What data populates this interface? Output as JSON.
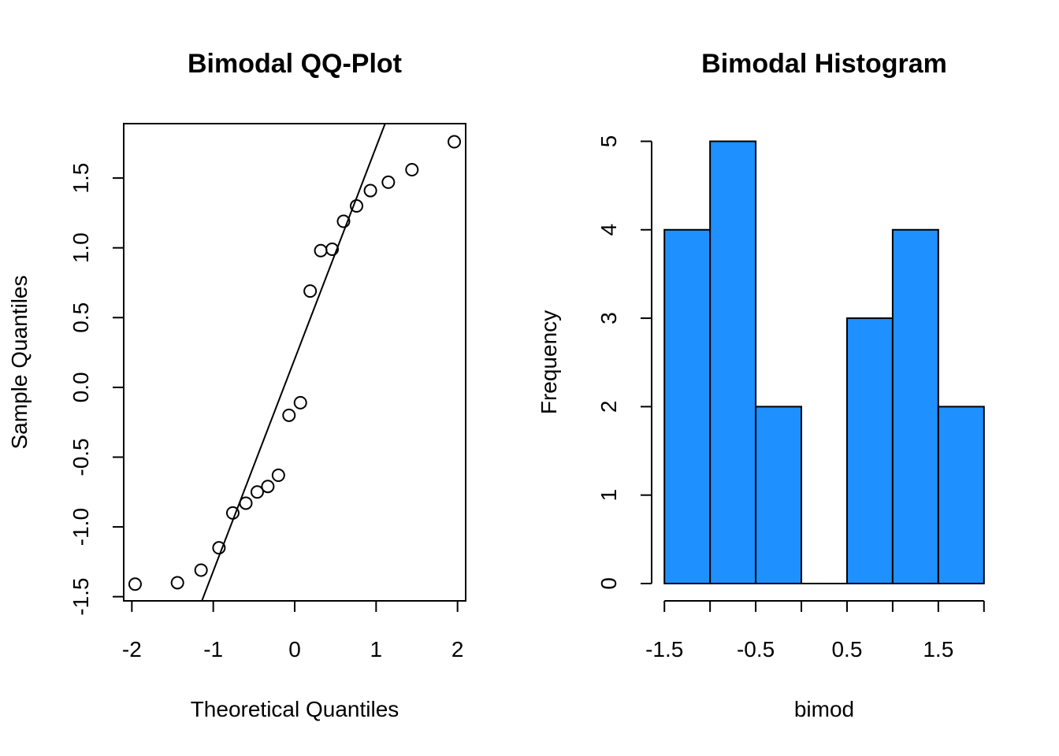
{
  "chart_data": [
    {
      "type": "scatter",
      "title": "Bimodal QQ-Plot",
      "xlabel": "Theoretical Quantiles",
      "ylabel": "Sample Quantiles",
      "xlim": [
        -2.1,
        2.1
      ],
      "ylim": [
        -1.53,
        1.89
      ],
      "x_ticks": [
        -2,
        -1,
        0,
        1,
        2
      ],
      "x_tick_labels": [
        "-2",
        "-1",
        "0",
        "1",
        "2"
      ],
      "y_ticks": [
        -1.5,
        -1.0,
        -0.5,
        0.0,
        0.5,
        1.0,
        1.5
      ],
      "y_tick_labels": [
        "-1.5",
        "-1.0",
        "-0.5",
        "0.0",
        "0.5",
        "1.0",
        "1.5"
      ],
      "points": [
        {
          "x": -1.96,
          "y": -1.41
        },
        {
          "x": -1.44,
          "y": -1.4
        },
        {
          "x": -1.15,
          "y": -1.31
        },
        {
          "x": -0.93,
          "y": -1.15
        },
        {
          "x": -0.76,
          "y": -0.9
        },
        {
          "x": -0.6,
          "y": -0.83
        },
        {
          "x": -0.46,
          "y": -0.75
        },
        {
          "x": -0.33,
          "y": -0.71
        },
        {
          "x": -0.2,
          "y": -0.63
        },
        {
          "x": -0.07,
          "y": -0.2
        },
        {
          "x": 0.07,
          "y": -0.11
        },
        {
          "x": 0.19,
          "y": 0.69
        },
        {
          "x": 0.32,
          "y": 0.98
        },
        {
          "x": 0.46,
          "y": 0.99
        },
        {
          "x": 0.6,
          "y": 1.19
        },
        {
          "x": 0.76,
          "y": 1.3
        },
        {
          "x": 0.93,
          "y": 1.41
        },
        {
          "x": 1.15,
          "y": 1.47
        },
        {
          "x": 1.44,
          "y": 1.56
        },
        {
          "x": 1.96,
          "y": 1.76
        }
      ],
      "reference_line": {
        "x1": -1.14,
        "y1": -1.53,
        "x2": 1.11,
        "y2": 1.89
      }
    },
    {
      "type": "bar",
      "title": "Bimodal Histogram",
      "xlabel": "bimod",
      "ylabel": "Frequency",
      "bin_edges": [
        -1.5,
        -1.0,
        -0.5,
        0.0,
        0.5,
        1.0,
        1.5,
        2.0
      ],
      "values": [
        4,
        5,
        2,
        0,
        3,
        4,
        2
      ],
      "xlim": [
        -1.64,
        2.14
      ],
      "ylim": [
        0,
        5.2
      ],
      "x_ticks": [
        -1.5,
        -1.0,
        -0.5,
        0.0,
        0.5,
        1.0,
        1.5,
        2.0
      ],
      "x_tick_labels": [
        {
          "at": -1.5,
          "text": "-1.5"
        },
        {
          "at": -0.5,
          "text": "-0.5"
        },
        {
          "at": 0.5,
          "text": "0.5"
        },
        {
          "at": 1.5,
          "text": "1.5"
        }
      ],
      "y_ticks": [
        0,
        1,
        2,
        3,
        4,
        5
      ],
      "y_tick_labels": [
        "0",
        "1",
        "2",
        "3",
        "4",
        "5"
      ],
      "bar_color": "#1E90FF"
    }
  ]
}
